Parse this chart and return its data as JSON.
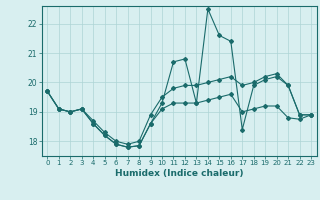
{
  "xlabel": "Humidex (Indice chaleur)",
  "x": [
    0,
    1,
    2,
    3,
    4,
    5,
    6,
    7,
    8,
    9,
    10,
    11,
    12,
    13,
    14,
    15,
    16,
    17,
    18,
    19,
    20,
    21,
    22,
    23
  ],
  "y_main": [
    19.7,
    19.1,
    19.0,
    19.1,
    18.6,
    18.2,
    17.9,
    17.8,
    17.85,
    18.6,
    19.3,
    20.7,
    20.8,
    19.3,
    22.5,
    21.6,
    21.4,
    18.4,
    19.9,
    20.1,
    20.2,
    19.9,
    18.9,
    18.9
  ],
  "y_low": [
    19.7,
    19.1,
    19.0,
    19.1,
    18.6,
    18.2,
    17.9,
    17.8,
    17.85,
    18.6,
    19.1,
    19.3,
    19.3,
    19.3,
    19.4,
    19.5,
    19.6,
    19.0,
    19.1,
    19.2,
    19.2,
    18.8,
    18.75,
    18.9
  ],
  "y_high": [
    19.7,
    19.1,
    19.0,
    19.1,
    18.7,
    18.3,
    18.0,
    17.9,
    18.0,
    18.9,
    19.5,
    19.8,
    19.9,
    19.9,
    20.0,
    20.1,
    20.2,
    19.9,
    20.0,
    20.2,
    20.3,
    19.9,
    18.9,
    18.9
  ],
  "line_color": "#1a6b6b",
  "bg_color": "#d8eff0",
  "grid_color": "#aed4d5",
  "ylim": [
    17.5,
    22.6
  ],
  "yticks": [
    18,
    19,
    20,
    21,
    22
  ],
  "xticks": [
    0,
    1,
    2,
    3,
    4,
    5,
    6,
    7,
    8,
    9,
    10,
    11,
    12,
    13,
    14,
    15,
    16,
    17,
    18,
    19,
    20,
    21,
    22,
    23
  ],
  "marker": "D",
  "markersize": 2.0,
  "linewidth": 0.8,
  "xlabel_fontsize": 6.5,
  "tick_fontsize": 5.0
}
